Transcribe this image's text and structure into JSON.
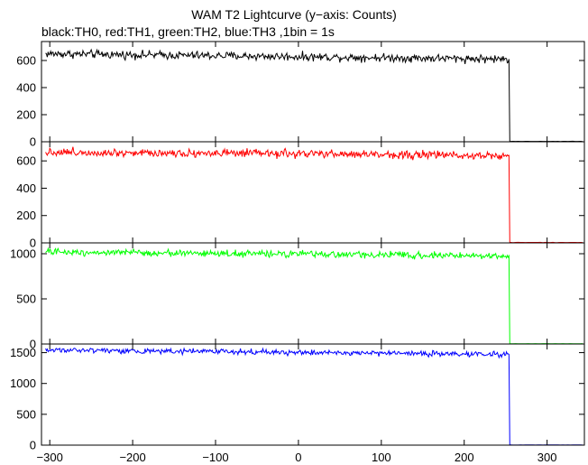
{
  "chart_data": {
    "type": "line",
    "title": "WAM T2 Lightcurve (y−axis: Counts)",
    "subtitle": "black:TH0, red:TH1, green:TH2, blue:TH3 ,1bin = 1s",
    "xlim": [
      -310,
      345
    ],
    "x_ticks": [
      -300,
      -200,
      -100,
      0,
      100,
      200,
      300
    ],
    "x_tick_labels": [
      "−300",
      "−200",
      "−100",
      "0",
      "100",
      "200",
      "300"
    ],
    "drop_x": 254,
    "grid": false,
    "panels": [
      {
        "series_label": "TH0",
        "color": "#000000",
        "ylim": [
          0,
          740
        ],
        "y_ticks": [
          0,
          200,
          400,
          600
        ],
        "y_tick_labels": [
          "0",
          "200",
          "400",
          "600"
        ],
        "level_start": 650,
        "level_end": 610,
        "noise": 25,
        "baseline_after": 3
      },
      {
        "series_label": "TH1",
        "color": "#ff0000",
        "ylim": [
          0,
          740
        ],
        "y_ticks": [
          0,
          200,
          400,
          600
        ],
        "y_tick_labels": [
          "0",
          "200",
          "400",
          "600"
        ],
        "level_start": 665,
        "level_end": 640,
        "noise": 25,
        "baseline_after": 3
      },
      {
        "series_label": "TH2",
        "color": "#00ff00",
        "ylim": [
          0,
          1120
        ],
        "y_ticks": [
          0,
          500,
          1000
        ],
        "y_tick_labels": [
          "0",
          "500",
          "1000"
        ],
        "level_start": 1020,
        "level_end": 975,
        "noise": 30,
        "baseline_after": 3
      },
      {
        "series_label": "TH3",
        "color": "#0000ff",
        "ylim": [
          0,
          1640
        ],
        "y_ticks": [
          0,
          500,
          1000,
          1500
        ],
        "y_tick_labels": [
          "0",
          "500",
          "1000",
          "1500"
        ],
        "level_start": 1545,
        "level_end": 1470,
        "noise": 35,
        "baseline_after": 3
      }
    ]
  }
}
